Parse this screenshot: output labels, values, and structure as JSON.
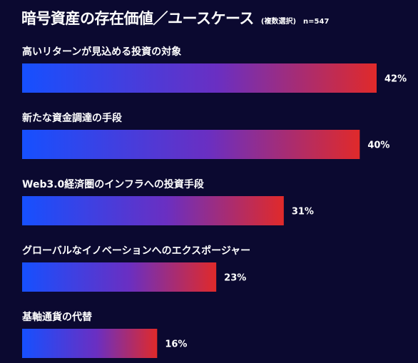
{
  "header": {
    "title": "暗号資産の存在価値／ユースケース",
    "note": "(複数選択)",
    "sample": "n=547"
  },
  "colors": {
    "background": "#0b0930",
    "bar_start": "#1650ff",
    "bar_mid": "#6a2fc2",
    "bar_end": "#e02a2a",
    "text": "#ffffff"
  },
  "chart_data": {
    "type": "bar",
    "orientation": "horizontal",
    "categories": [
      "高いリターンが見込める投資の対象",
      "新たな資金調達の手段",
      "Web3.0経済圏のインフラへの投資手段",
      "グローバルなイノベーションへのエクスポージャー",
      "基軸通貨の代替"
    ],
    "values": [
      42,
      40,
      31,
      23,
      16
    ],
    "value_labels": [
      "42%",
      "40%",
      "31%",
      "23%",
      "16%"
    ],
    "unit": "%",
    "xlim": [
      0,
      42
    ],
    "grid": false,
    "legend": "none"
  }
}
